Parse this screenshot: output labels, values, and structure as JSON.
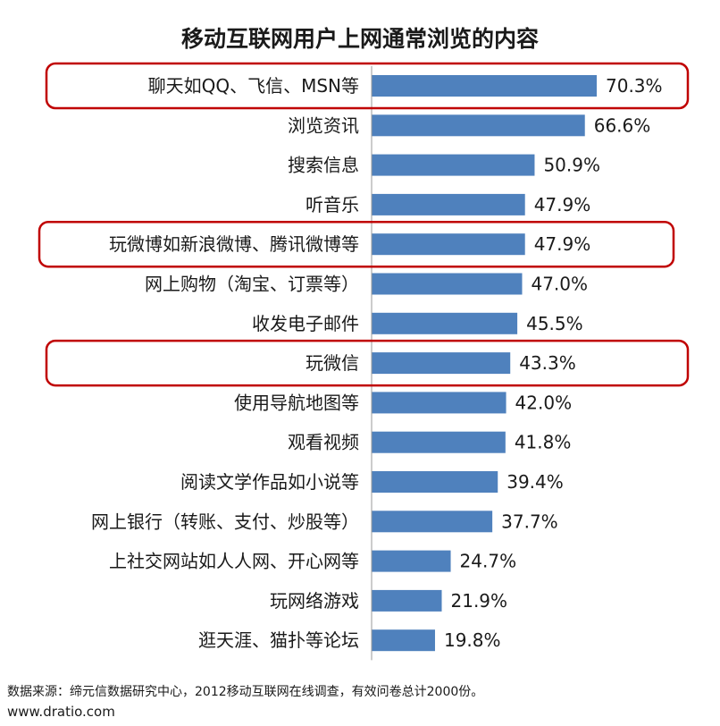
{
  "chart_data": {
    "type": "bar",
    "orientation": "horizontal",
    "title": "移动互联网用户上网通常浏览的内容",
    "categories": [
      "聊天如QQ、飞信、MSN等",
      "浏览资讯",
      "搜索信息",
      "听音乐",
      "玩微博如新浪微博、腾讯微博等",
      "网上购物（淘宝、订票等）",
      "收发电子邮件",
      "玩微信",
      "使用导航地图等",
      "观看视频",
      "阅读文学作品如小说等",
      "网上银行（转账、支付、炒股等）",
      "上社交网站如人人网、开心网等",
      "玩网络游戏",
      "逛天涯、猫扑等论坛"
    ],
    "values": [
      70.3,
      66.6,
      50.9,
      47.9,
      47.9,
      47.0,
      45.5,
      43.3,
      42.0,
      41.8,
      39.4,
      37.7,
      24.7,
      21.9,
      19.8
    ],
    "value_labels": [
      "70.3%",
      "66.6%",
      "50.9%",
      "47.9%",
      "47.9%",
      "47.0%",
      "45.5%",
      "43.3%",
      "42.0%",
      "41.8%",
      "39.4%",
      "37.7%",
      "24.7%",
      "21.9%",
      "19.8%"
    ],
    "unit": "%",
    "highlighted_categories": [
      "聊天如QQ、飞信、MSN等",
      "玩微博如新浪微博、腾讯微博等",
      "玩微信"
    ],
    "xlim": [
      0,
      70.3
    ],
    "grid": false,
    "legend": "none"
  },
  "colors": {
    "bar": "#4f81bd",
    "highlight_border": "#c00000",
    "text": "#1a1a1a",
    "background": "#ffffff"
  },
  "footer": {
    "source": "数据来源：缔元信数据研究中心，2012移动互联网在线调查，有效问卷总计2000份。",
    "url": "www.dratio.com"
  }
}
